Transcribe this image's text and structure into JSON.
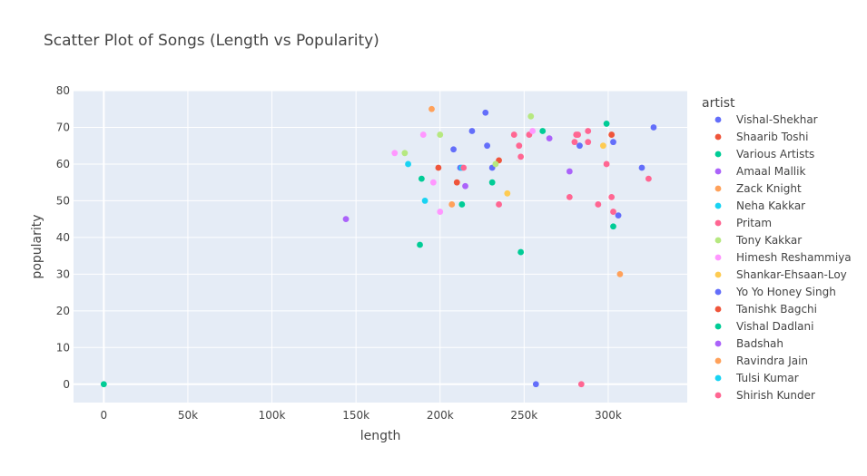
{
  "chart_data": {
    "type": "scatter",
    "title": "Scatter Plot of Songs (Length vs Popularity)",
    "xlabel": "length",
    "ylabel": "popularity",
    "xlim": [
      -18000,
      347000
    ],
    "ylim": [
      -5,
      80
    ],
    "x_ticks": [
      0,
      50000,
      100000,
      150000,
      200000,
      250000,
      300000
    ],
    "x_tick_labels": [
      "0",
      "50k",
      "100k",
      "150k",
      "200k",
      "250k",
      "300k"
    ],
    "y_ticks": [
      0,
      10,
      20,
      30,
      40,
      50,
      60,
      70,
      80
    ],
    "y_tick_labels": [
      "0",
      "10",
      "20",
      "30",
      "40",
      "50",
      "60",
      "70",
      "80"
    ],
    "grid": true,
    "legend_title": "artist",
    "legend_position": "right",
    "series": [
      {
        "name": "Vishal-Shekhar",
        "color": "#636efa",
        "points": [
          [
            208000,
            64
          ],
          [
            212000,
            59
          ],
          [
            219000,
            69
          ],
          [
            227000,
            74
          ],
          [
            228000,
            65
          ],
          [
            231000,
            59
          ],
          [
            283000,
            65
          ],
          [
            303000,
            66
          ],
          [
            306000,
            46
          ],
          [
            320000,
            59
          ],
          [
            327000,
            70
          ],
          [
            257000,
            0
          ]
        ]
      },
      {
        "name": "Shaarib Toshi",
        "color": "#EF553B",
        "points": [
          [
            199000,
            59
          ],
          [
            210000,
            55
          ],
          [
            235000,
            61
          ],
          [
            302000,
            68
          ]
        ]
      },
      {
        "name": "Various Artists",
        "color": "#00cc96",
        "points": [
          [
            188000,
            38
          ],
          [
            189000,
            56
          ],
          [
            213000,
            49
          ],
          [
            231000,
            55
          ],
          [
            248000,
            36
          ],
          [
            261000,
            69
          ],
          [
            299000,
            71
          ],
          [
            303000,
            43
          ],
          [
            0,
            0
          ]
        ]
      },
      {
        "name": "Amaal Mallik",
        "color": "#ab63fa",
        "points": [
          [
            144000,
            45
          ],
          [
            215000,
            54
          ],
          [
            265000,
            67
          ],
          [
            277000,
            58
          ]
        ]
      },
      {
        "name": "Zack Knight",
        "color": "#FFA15A",
        "points": [
          [
            195000,
            75
          ],
          [
            207000,
            49
          ],
          [
            307000,
            30
          ]
        ]
      },
      {
        "name": "Neha Kakkar",
        "color": "#19d3f3",
        "points": [
          [
            181000,
            60
          ],
          [
            191000,
            50
          ],
          [
            213000,
            59
          ]
        ]
      },
      {
        "name": "Pritam",
        "color": "#FF6692",
        "points": [
          [
            214000,
            59
          ],
          [
            235000,
            49
          ],
          [
            244000,
            68
          ],
          [
            247000,
            65
          ],
          [
            248000,
            62
          ],
          [
            253000,
            68
          ],
          [
            277000,
            51
          ],
          [
            280000,
            66
          ],
          [
            281000,
            68
          ],
          [
            282000,
            68
          ],
          [
            288000,
            69
          ],
          [
            288000,
            66
          ],
          [
            294000,
            49
          ],
          [
            299000,
            60
          ],
          [
            302000,
            51
          ],
          [
            303000,
            47
          ],
          [
            324000,
            56
          ],
          [
            284000,
            0
          ]
        ]
      },
      {
        "name": "Tony Kakkar",
        "color": "#B6E880",
        "points": [
          [
            179000,
            63
          ],
          [
            200000,
            68
          ],
          [
            233000,
            60
          ],
          [
            254000,
            73
          ]
        ]
      },
      {
        "name": "Himesh Reshammiya",
        "color": "#FF97FF",
        "points": [
          [
            173000,
            63
          ],
          [
            190000,
            68
          ],
          [
            196000,
            55
          ],
          [
            200000,
            47
          ],
          [
            255000,
            69
          ]
        ]
      },
      {
        "name": "Shankar-Ehsaan-Loy",
        "color": "#FECB52",
        "points": [
          [
            240000,
            52
          ],
          [
            297000,
            65
          ]
        ]
      },
      {
        "name": "Yo Yo Honey Singh",
        "color": "#636efa",
        "points": []
      },
      {
        "name": "Tanishk Bagchi",
        "color": "#EF553B",
        "points": []
      },
      {
        "name": "Vishal Dadlani",
        "color": "#00cc96",
        "points": []
      },
      {
        "name": "Badshah",
        "color": "#ab63fa",
        "points": []
      },
      {
        "name": "Ravindra Jain",
        "color": "#FFA15A",
        "points": []
      },
      {
        "name": "Tulsi Kumar",
        "color": "#19d3f3",
        "points": []
      },
      {
        "name": "Shirish Kunder",
        "color": "#FF6692",
        "points": []
      }
    ]
  }
}
